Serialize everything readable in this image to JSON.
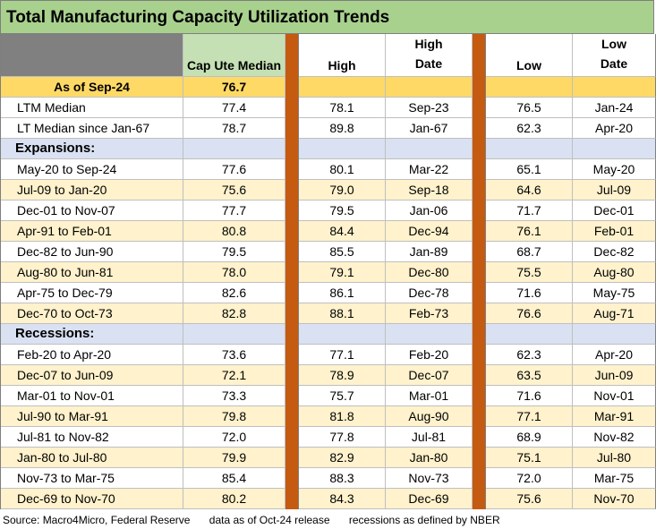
{
  "title": "Total Manufacturing Capacity Utilization Trends",
  "headers": {
    "median": "Cap Ute Median",
    "high": "High",
    "high_date_1": "High",
    "high_date_2": "Date",
    "low": "Low",
    "low_date_1": "Low",
    "low_date_2": "Date"
  },
  "asof": {
    "label": "As of Sep-24",
    "value": "76.7"
  },
  "summary": [
    {
      "label": "LTM Median",
      "median": "77.4",
      "high": "78.1",
      "high_date": "Sep-23",
      "low": "76.5",
      "low_date": "Jan-24"
    },
    {
      "label": "LT Median since Jan-67",
      "median": "78.7",
      "high": "89.8",
      "high_date": "Jan-67",
      "low": "62.3",
      "low_date": "Apr-20"
    }
  ],
  "expansions_label": "Expansions:",
  "expansions": [
    {
      "label": "May-20 to Sep-24",
      "median": "77.6",
      "high": "80.1",
      "high_date": "Mar-22",
      "low": "65.1",
      "low_date": "May-20"
    },
    {
      "label": "Jul-09 to Jan-20",
      "median": "75.6",
      "high": "79.0",
      "high_date": "Sep-18",
      "low": "64.6",
      "low_date": "Jul-09"
    },
    {
      "label": "Dec-01 to Nov-07",
      "median": "77.7",
      "high": "79.5",
      "high_date": "Jan-06",
      "low": "71.7",
      "low_date": "Dec-01"
    },
    {
      "label": "Apr-91 to Feb-01",
      "median": "80.8",
      "high": "84.4",
      "high_date": "Dec-94",
      "low": "76.1",
      "low_date": "Feb-01"
    },
    {
      "label": "Dec-82 to Jun-90",
      "median": "79.5",
      "high": "85.5",
      "high_date": "Jan-89",
      "low": "68.7",
      "low_date": "Dec-82"
    },
    {
      "label": "Aug-80 to Jun-81",
      "median": "78.0",
      "high": "79.1",
      "high_date": "Dec-80",
      "low": "75.5",
      "low_date": "Aug-80"
    },
    {
      "label": "Apr-75 to Dec-79",
      "median": "82.6",
      "high": "86.1",
      "high_date": "Dec-78",
      "low": "71.6",
      "low_date": "May-75"
    },
    {
      "label": "Dec-70 to Oct-73",
      "median": "82.8",
      "high": "88.1",
      "high_date": "Feb-73",
      "low": "76.6",
      "low_date": "Aug-71"
    }
  ],
  "recessions_label": "Recessions:",
  "recessions": [
    {
      "label": "Feb-20 to Apr-20",
      "median": "73.6",
      "high": "77.1",
      "high_date": "Feb-20",
      "low": "62.3",
      "low_date": "Apr-20"
    },
    {
      "label": "Dec-07 to Jun-09",
      "median": "72.1",
      "high": "78.9",
      "high_date": "Dec-07",
      "low": "63.5",
      "low_date": "Jun-09"
    },
    {
      "label": "Mar-01 to Nov-01",
      "median": "73.3",
      "high": "75.7",
      "high_date": "Mar-01",
      "low": "71.6",
      "low_date": "Nov-01"
    },
    {
      "label": "Jul-90 to Mar-91",
      "median": "79.8",
      "high": "81.8",
      "high_date": "Aug-90",
      "low": "77.1",
      "low_date": "Mar-91"
    },
    {
      "label": "Jul-81 to Nov-82",
      "median": "72.0",
      "high": "77.8",
      "high_date": "Jul-81",
      "low": "68.9",
      "low_date": "Nov-82"
    },
    {
      "label": "Jan-80 to Jul-80",
      "median": "79.9",
      "high": "82.9",
      "high_date": "Jan-80",
      "low": "75.1",
      "low_date": "Jul-80"
    },
    {
      "label": "Nov-73 to Mar-75",
      "median": "85.4",
      "high": "88.3",
      "high_date": "Nov-73",
      "low": "72.0",
      "low_date": "Mar-75"
    },
    {
      "label": "Dec-69 to Nov-70",
      "median": "80.2",
      "high": "84.3",
      "high_date": "Dec-69",
      "low": "75.6",
      "low_date": "Nov-70"
    }
  ],
  "footer": {
    "source": "Source: Macro4Micro, Federal Reserve",
    "data_note": "data as of Oct-24 release",
    "recession_note": "recessions as defined by NBER"
  },
  "colors": {
    "title_bg": "#a9d18e",
    "header_bg": "#c5e0b4",
    "asof_bg": "#ffd966",
    "alt_row_bg": "#fff2cc",
    "section_bg": "#d9e1f2",
    "divider": "#c55a11"
  }
}
